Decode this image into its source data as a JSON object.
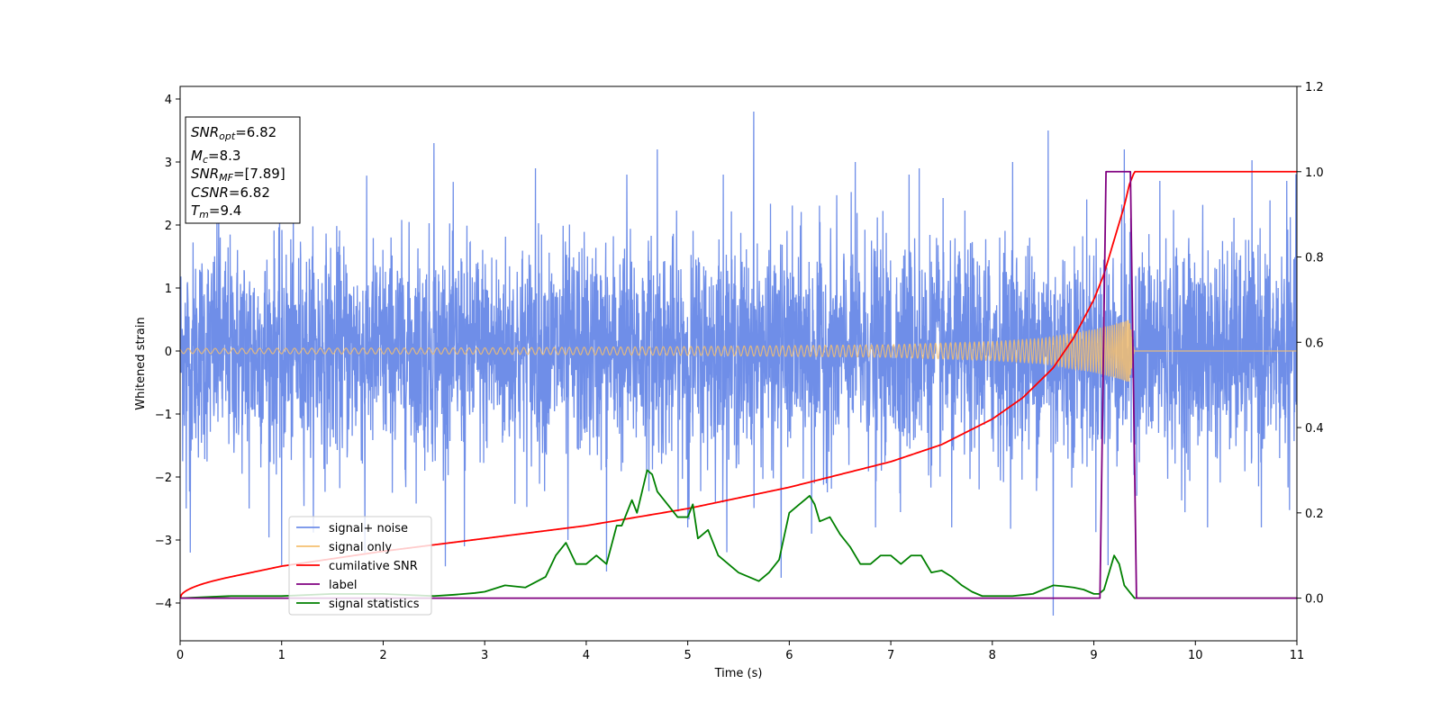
{
  "chart_data": {
    "type": "line",
    "xlabel": "Time (s)",
    "ylabel": "Whitened strain",
    "xlim": [
      0,
      11
    ],
    "ylim_left": [
      -4.6,
      4.2
    ],
    "ylim_right": [
      -0.1,
      1.2
    ],
    "x_ticks": [
      0,
      1,
      2,
      3,
      4,
      5,
      6,
      7,
      8,
      9,
      10,
      11
    ],
    "x_tick_labels": [
      "0",
      "1",
      "2",
      "3",
      "4",
      "5",
      "6",
      "7",
      "8",
      "9",
      "10",
      "11"
    ],
    "y_left_ticks": [
      -4,
      -3,
      -2,
      -1,
      0,
      1,
      2,
      3,
      4
    ],
    "y_left_tick_labels": [
      "−4",
      "−3",
      "−2",
      "−1",
      "0",
      "1",
      "2",
      "3",
      "4"
    ],
    "y_right_ticks": [
      0.0,
      0.2,
      0.4,
      0.6,
      0.8,
      1.0,
      1.2
    ],
    "y_right_tick_labels": [
      "0.0",
      "0.2",
      "0.4",
      "0.6",
      "0.8",
      "1.0",
      "1.2"
    ],
    "annotation": {
      "lines": [
        {
          "sym": "SNR",
          "sub": "opt",
          "val": "=6.82"
        },
        {
          "sym": "M",
          "sub": "c",
          "val": "=8.3"
        },
        {
          "sym": "SNR",
          "sub": "MF",
          "val": "=[7.89]"
        },
        {
          "sym": "CSNR",
          "sub": "",
          "val": "=6.82"
        },
        {
          "sym": "T",
          "sub": "m",
          "val": "=9.4"
        }
      ]
    },
    "legend_position": "lower-left",
    "series": [
      {
        "name": "signal+ noise",
        "color": "#6f8ee8",
        "axis": "left",
        "noise_std": 0.85,
        "noise_peak_values": [
          [
            0.06,
            -2.5
          ],
          [
            0.1,
            -3.2
          ],
          [
            0.38,
            2.6
          ],
          [
            0.68,
            -2.5
          ],
          [
            1.0,
            -3.4
          ],
          [
            1.82,
            -3.2
          ],
          [
            2.5,
            3.3
          ],
          [
            2.8,
            -3.1
          ],
          [
            3.5,
            2.9
          ],
          [
            3.82,
            -3.0
          ],
          [
            4.2,
            -3.5
          ],
          [
            4.4,
            2.8
          ],
          [
            4.7,
            3.2
          ],
          [
            5.0,
            -2.8
          ],
          [
            5.35,
            2.8
          ],
          [
            5.65,
            3.8
          ],
          [
            5.92,
            -3.6
          ],
          [
            6.22,
            -2.9
          ],
          [
            6.65,
            3.0
          ],
          [
            6.85,
            -2.8
          ],
          [
            7.18,
            2.8
          ],
          [
            7.28,
            2.9
          ],
          [
            7.6,
            -2.8
          ],
          [
            8.2,
            3.0
          ],
          [
            8.55,
            3.5
          ],
          [
            8.6,
            -4.2
          ],
          [
            9.14,
            -3.4
          ],
          [
            9.3,
            3.2
          ],
          [
            9.65,
            2.7
          ],
          [
            10.12,
            -2.8
          ],
          [
            10.65,
            -2.8
          ],
          [
            10.9,
            2.7
          ]
        ]
      },
      {
        "name": "signal only",
        "color": "#f5c070",
        "axis": "left",
        "amplitude_envelope": [
          [
            0,
            0.04
          ],
          [
            3,
            0.05
          ],
          [
            5,
            0.07
          ],
          [
            7,
            0.1
          ],
          [
            8,
            0.15
          ],
          [
            8.5,
            0.2
          ],
          [
            8.8,
            0.28
          ],
          [
            9.0,
            0.34
          ],
          [
            9.2,
            0.42
          ],
          [
            9.35,
            0.5
          ],
          [
            9.4,
            0
          ]
        ],
        "merger_time": 9.4
      },
      {
        "name": "cumilative SNR",
        "color": "#ff0000",
        "axis": "right",
        "x": [
          0,
          0.5,
          1,
          2,
          3,
          4,
          5,
          6,
          6.5,
          7,
          7.5,
          8,
          8.3,
          8.6,
          8.8,
          9.0,
          9.1,
          9.2,
          9.3,
          9.35,
          9.4,
          11
        ],
        "y": [
          0.0,
          0.05,
          0.075,
          0.11,
          0.14,
          0.17,
          0.21,
          0.26,
          0.29,
          0.32,
          0.36,
          0.42,
          0.47,
          0.54,
          0.61,
          0.7,
          0.76,
          0.84,
          0.92,
          0.97,
          1.0,
          1.0
        ]
      },
      {
        "name": "label",
        "color": "#800080",
        "axis": "right",
        "x": [
          0,
          9.06,
          9.12,
          9.36,
          9.42,
          11
        ],
        "y": [
          0,
          0,
          1,
          1,
          0,
          0
        ]
      },
      {
        "name": "signal statistics",
        "color": "#008000",
        "axis": "right",
        "x": [
          0,
          0.5,
          1,
          1.5,
          2,
          2.5,
          2.7,
          2.9,
          3.0,
          3.2,
          3.4,
          3.6,
          3.7,
          3.8,
          3.9,
          4.0,
          4.1,
          4.2,
          4.3,
          4.35,
          4.45,
          4.5,
          4.6,
          4.65,
          4.7,
          4.8,
          4.9,
          5.0,
          5.05,
          5.1,
          5.2,
          5.3,
          5.4,
          5.5,
          5.6,
          5.7,
          5.8,
          5.9,
          6.0,
          6.1,
          6.2,
          6.25,
          6.3,
          6.4,
          6.5,
          6.6,
          6.7,
          6.8,
          6.9,
          7.0,
          7.1,
          7.2,
          7.3,
          7.4,
          7.5,
          7.6,
          7.7,
          7.8,
          7.9,
          8.0,
          8.2,
          8.4,
          8.5,
          8.6,
          8.7,
          8.8,
          8.9,
          9.0,
          9.05,
          9.1,
          9.2,
          9.25,
          9.3,
          9.4,
          9.5,
          9.7,
          10,
          10.5,
          11
        ],
        "y": [
          0.0,
          0.005,
          0.005,
          0.01,
          0.01,
          0.005,
          0.008,
          0.012,
          0.015,
          0.03,
          0.025,
          0.05,
          0.1,
          0.13,
          0.08,
          0.08,
          0.1,
          0.08,
          0.17,
          0.17,
          0.23,
          0.2,
          0.3,
          0.29,
          0.25,
          0.22,
          0.19,
          0.19,
          0.22,
          0.14,
          0.16,
          0.1,
          0.08,
          0.06,
          0.05,
          0.04,
          0.06,
          0.09,
          0.2,
          0.22,
          0.24,
          0.22,
          0.18,
          0.19,
          0.15,
          0.12,
          0.08,
          0.08,
          0.1,
          0.1,
          0.08,
          0.1,
          0.1,
          0.06,
          0.065,
          0.05,
          0.03,
          0.015,
          0.005,
          0.005,
          0.005,
          0.01,
          0.02,
          0.03,
          0.028,
          0.025,
          0.02,
          0.01,
          0.01,
          0.02,
          0.1,
          0.08,
          0.03,
          0.0,
          0.0,
          0.0,
          0.0,
          0.0,
          0.0
        ]
      }
    ]
  }
}
